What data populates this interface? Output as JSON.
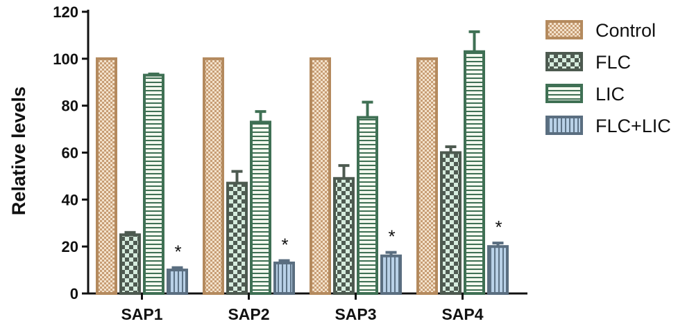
{
  "chart_data": {
    "type": "bar",
    "ylabel": "Relative levels",
    "xlabel": "",
    "ylim": [
      0,
      120
    ],
    "yticks": [
      "0",
      "20",
      "40",
      "60",
      "80",
      "100",
      "120"
    ],
    "categories": [
      "SAP1",
      "SAP2",
      "SAP3",
      "SAP4"
    ],
    "series": [
      {
        "name": "Control",
        "values": [
          100,
          100,
          100,
          100
        ],
        "errors": [
          0,
          0,
          0,
          0
        ],
        "fill": "#e8d2b6",
        "stroke": "#b48a5e",
        "pattern": "checker-fine"
      },
      {
        "name": "FLC",
        "values": [
          25,
          47,
          49,
          60
        ],
        "errors": [
          1,
          5,
          5.5,
          2.5
        ],
        "fill": "#cfe6d8",
        "stroke": "#4d5a50",
        "pattern": "checker-coarse"
      },
      {
        "name": "LIC",
        "values": [
          93,
          73,
          75,
          103
        ],
        "errors": [
          0.5,
          4.5,
          6.5,
          8.5
        ],
        "fill": "#eef5ea",
        "stroke": "#3f7054",
        "pattern": "horizontal-lines"
      },
      {
        "name": "FLC+LIC",
        "values": [
          10,
          13,
          16,
          20
        ],
        "errors": [
          1,
          1,
          1.5,
          1.5
        ],
        "fill": "#a9c4dd",
        "stroke": "#5a6e80",
        "pattern": "vertical-lines"
      }
    ],
    "annotations": [
      "*",
      "*",
      "*",
      "*"
    ],
    "legend_position": "right",
    "grid": false
  }
}
